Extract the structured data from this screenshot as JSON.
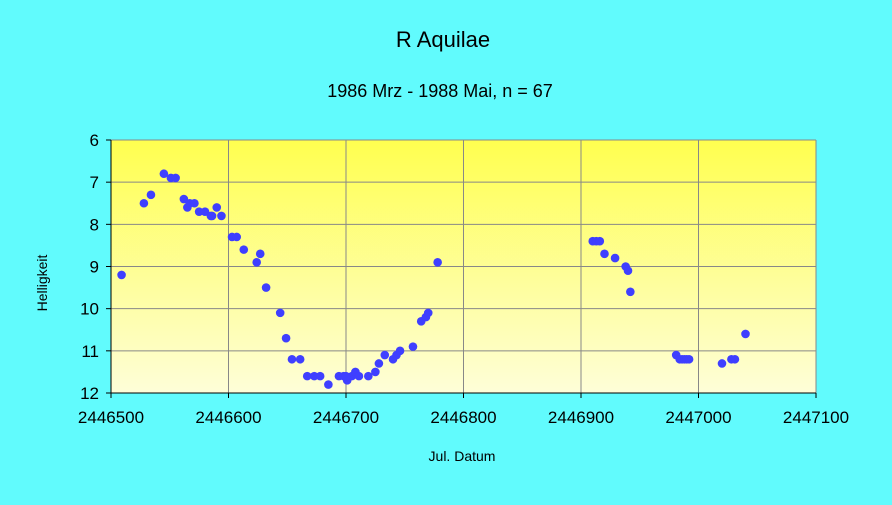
{
  "colors": {
    "background": "#61fbfd",
    "plot_top": "#ffff4f",
    "plot_bottom": "#fefed8",
    "marker": "#3f3fff",
    "grid": "#888888"
  },
  "chart_data": {
    "type": "scatter",
    "title": "R Aquilae",
    "subtitle": "1986 Mrz - 1988 Mai, n = 67",
    "xlabel": "Jul. Datum",
    "ylabel": "Helligkeit",
    "xlim": [
      2446500,
      2447100
    ],
    "ylim": [
      6,
      12
    ],
    "y_inverted": true,
    "grid": true,
    "legend": "none",
    "x_ticks": [
      2446500,
      2446600,
      2446700,
      2446800,
      2446900,
      2447000,
      2447100
    ],
    "x_tick_labels": [
      "2446500",
      "2446600",
      "2446700",
      "2446800",
      "2446900",
      "2447000",
      "2447100"
    ],
    "y_ticks": [
      6,
      7,
      8,
      9,
      10,
      11,
      12
    ],
    "y_tick_labels": [
      "6",
      "7",
      "8",
      "9",
      "10",
      "11",
      "12"
    ],
    "series": [
      {
        "name": "R Aquilae",
        "points": [
          [
            2446509,
            9.2
          ],
          [
            2446528,
            7.5
          ],
          [
            2446534,
            7.3
          ],
          [
            2446545,
            6.8
          ],
          [
            2446551,
            6.9
          ],
          [
            2446555,
            6.9
          ],
          [
            2446562,
            7.4
          ],
          [
            2446565,
            7.6
          ],
          [
            2446567,
            7.5
          ],
          [
            2446571,
            7.5
          ],
          [
            2446575,
            7.7
          ],
          [
            2446580,
            7.7
          ],
          [
            2446585,
            7.8
          ],
          [
            2446590,
            7.6
          ],
          [
            2446594,
            7.8
          ],
          [
            2446603,
            8.3
          ],
          [
            2446607,
            8.3
          ],
          [
            2446613,
            8.6
          ],
          [
            2446624,
            8.9
          ],
          [
            2446627,
            8.7
          ],
          [
            2446632,
            9.5
          ],
          [
            2446644,
            10.1
          ],
          [
            2446649,
            10.7
          ],
          [
            2446654,
            11.2
          ],
          [
            2446661,
            11.2
          ],
          [
            2446667,
            11.6
          ],
          [
            2446673,
            11.6
          ],
          [
            2446678,
            11.6
          ],
          [
            2446685,
            11.8
          ],
          [
            2446694,
            11.6
          ],
          [
            2446698,
            11.6
          ],
          [
            2446701,
            11.7
          ],
          [
            2446705,
            11.6
          ],
          [
            2446708,
            11.5
          ],
          [
            2446711,
            11.6
          ],
          [
            2446719,
            11.6
          ],
          [
            2446725,
            11.5
          ],
          [
            2446728,
            11.3
          ],
          [
            2446733,
            11.1
          ],
          [
            2446740,
            11.2
          ],
          [
            2446743,
            11.1
          ],
          [
            2446746,
            11.0
          ],
          [
            2446757,
            10.9
          ],
          [
            2446764,
            10.3
          ],
          [
            2446768,
            10.2
          ],
          [
            2446770,
            10.1
          ],
          [
            2446778,
            8.9
          ],
          [
            2446910,
            8.4
          ],
          [
            2446913,
            8.4
          ],
          [
            2446916,
            8.4
          ],
          [
            2446920,
            8.7
          ],
          [
            2446929,
            8.8
          ],
          [
            2446938,
            9.0
          ],
          [
            2446940,
            9.1
          ],
          [
            2446942,
            9.6
          ],
          [
            2446981,
            11.1
          ],
          [
            2446984,
            11.2
          ],
          [
            2446986,
            11.2
          ],
          [
            2446988,
            11.2
          ],
          [
            2446990,
            11.2
          ],
          [
            2446992,
            11.2
          ],
          [
            2447020,
            11.3
          ],
          [
            2447028,
            11.2
          ],
          [
            2447031,
            11.2
          ],
          [
            2447040,
            10.6
          ],
          [
            2446586,
            7.8
          ],
          [
            2446700,
            11.6
          ]
        ]
      }
    ]
  }
}
